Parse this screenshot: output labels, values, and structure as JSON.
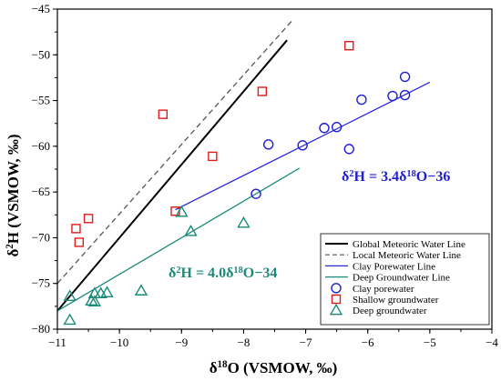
{
  "chart_data": {
    "type": "scatter",
    "xlabel": "δ18O (VSMOW, ‰)",
    "ylabel": "δ2H (VSMOW, ‰)",
    "xlim": [
      -11,
      -4
    ],
    "ylim": [
      -80,
      -45
    ],
    "x_ticks": [
      -11,
      -10,
      -9,
      -8,
      -7,
      -6,
      -5,
      -4
    ],
    "y_ticks": [
      -80,
      -75,
      -70,
      -65,
      -60,
      -55,
      -50,
      -45
    ],
    "grid": false,
    "legend_position": "bottom-right",
    "series": [
      {
        "name": "Clay porewater",
        "marker": "circle",
        "color": "#1f1fd6",
        "points": [
          [
            -7.6,
            -59.8
          ],
          [
            -7.05,
            -59.9
          ],
          [
            -7.8,
            -65.2
          ],
          [
            -6.7,
            -58.0
          ],
          [
            -6.5,
            -57.9
          ],
          [
            -6.3,
            -60.3
          ],
          [
            -6.1,
            -54.9
          ],
          [
            -5.6,
            -54.5
          ],
          [
            -5.4,
            -54.4
          ],
          [
            -5.4,
            -52.4
          ]
        ]
      },
      {
        "name": "Shallow groundwater",
        "marker": "square",
        "color": "#e01b1b",
        "points": [
          [
            -10.7,
            -69.0
          ],
          [
            -10.65,
            -70.5
          ],
          [
            -10.5,
            -67.9
          ],
          [
            -9.3,
            -56.5
          ],
          [
            -9.1,
            -67.1
          ],
          [
            -8.5,
            -61.1
          ],
          [
            -7.7,
            -54.0
          ],
          [
            -6.3,
            -49.0
          ]
        ]
      },
      {
        "name": "Deep groundwater",
        "marker": "triangle",
        "color": "#1a8a7a",
        "points": [
          [
            -10.8,
            -76.4
          ],
          [
            -10.8,
            -79.0
          ],
          [
            -10.4,
            -76.1
          ],
          [
            -10.45,
            -76.9
          ],
          [
            -10.4,
            -77.0
          ],
          [
            -10.3,
            -76.1
          ],
          [
            -10.2,
            -76.0
          ],
          [
            -9.65,
            -75.8
          ],
          [
            -9.0,
            -67.2
          ],
          [
            -8.85,
            -69.3
          ],
          [
            -8.0,
            -68.4
          ]
        ]
      }
    ],
    "lines": [
      {
        "name": "Global Meteoric Water Line",
        "color": "#000000",
        "style": "solid",
        "slope": 8,
        "intercept": 10,
        "x_range": [
          -11,
          -7.3
        ]
      },
      {
        "name": "Local Meteoric Water Line",
        "color": "#555555",
        "style": "dashed",
        "slope": 7.6,
        "intercept": 8.6,
        "x_range": [
          -11,
          -7.2
        ]
      },
      {
        "name": "Clay Porewater Line",
        "color": "#2b2bd4",
        "style": "solid",
        "slope": 3.4,
        "intercept": -36,
        "x_range": [
          -9.1,
          -5.0
        ]
      },
      {
        "name": "Deep Groundwater Line",
        "color": "#1a8a7a",
        "style": "solid",
        "slope": 4.0,
        "intercept": -34,
        "x_range": [
          -11,
          -7.1
        ]
      }
    ],
    "annotations": [
      {
        "text": "δ2H = 3.4δ18O−36",
        "color": "#1f1fd6"
      },
      {
        "text": "δ2H = 4.0δ18O−34",
        "color": "#1a8a7a"
      }
    ]
  }
}
